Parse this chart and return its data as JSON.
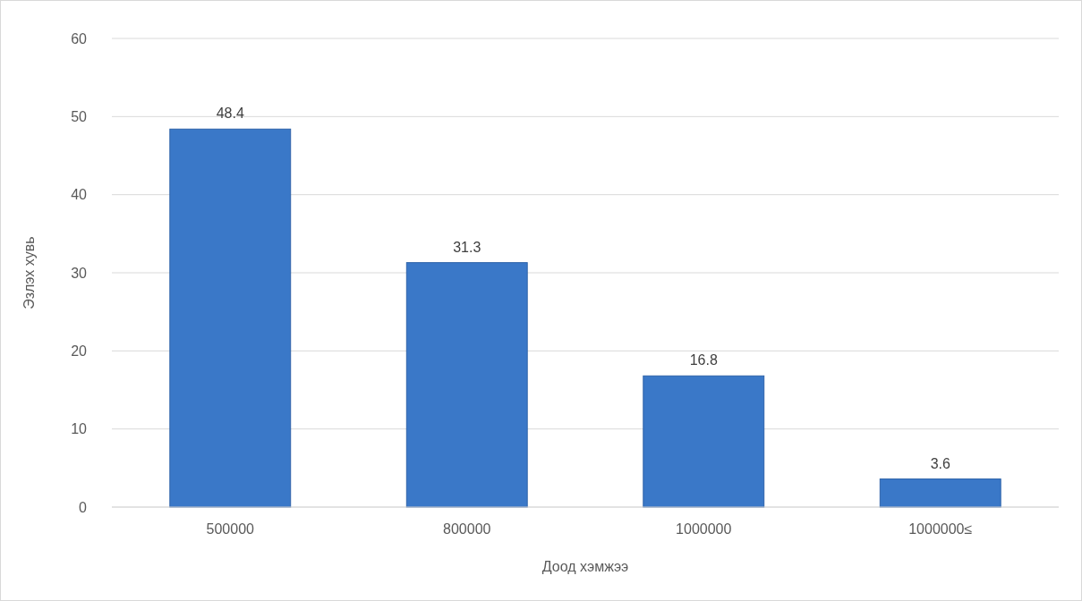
{
  "chart_data": {
    "type": "bar",
    "xlabel": "Доод хэмжээ",
    "ylabel": "Эзлэх хувь",
    "categories": [
      "500000",
      "800000",
      "1000000",
      "1000000≤"
    ],
    "values": [
      48.4,
      31.3,
      16.8,
      3.6
    ],
    "color": "#3a78c8",
    "ylim": [
      0,
      60
    ],
    "yticks": [
      0,
      10,
      20,
      30,
      40,
      50,
      60
    ],
    "grid": "y",
    "data_labels": true
  }
}
